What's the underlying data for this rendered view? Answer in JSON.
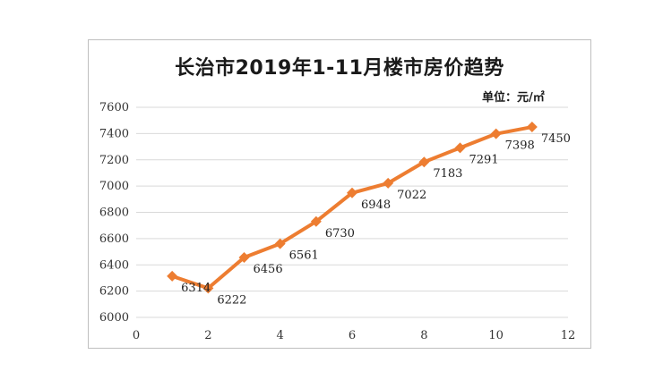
{
  "chart_data": {
    "type": "line",
    "title": "长治市2019年1-11月楼市房价趋势",
    "unit_label": "单位：元/㎡",
    "x": [
      1,
      2,
      3,
      4,
      5,
      6,
      7,
      8,
      9,
      10,
      11
    ],
    "series": [
      {
        "values": [
          6314,
          6222,
          6456,
          6561,
          6730,
          6948,
          7022,
          7183,
          7291,
          7398,
          7450
        ]
      }
    ],
    "xlim": [
      0,
      12
    ],
    "ylim": [
      6000,
      7600
    ],
    "xticks": [
      "0",
      "2",
      "4",
      "6",
      "8",
      "10",
      "12"
    ],
    "yticks": [
      "6000",
      "6200",
      "6400",
      "6600",
      "6800",
      "7000",
      "7200",
      "7400",
      "7600"
    ],
    "grid": "horizontal",
    "line_color": "#ED7D31",
    "grid_color": "#d9d9d9"
  }
}
